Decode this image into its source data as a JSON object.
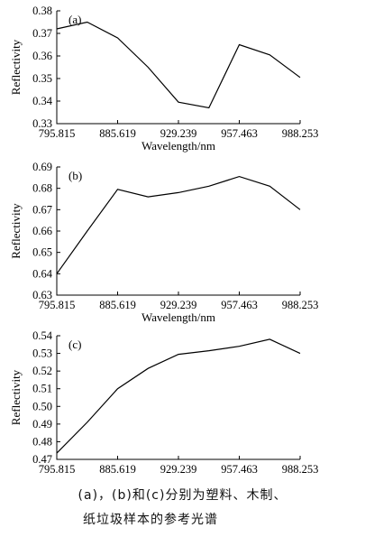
{
  "chart_data": [
    {
      "type": "line",
      "panel_label": "(a)",
      "xlabel": "Wavelength/nm",
      "ylabel": "Reflectivity",
      "categories": [
        "795.815",
        "885.619",
        "929.239",
        "957.463",
        "988.253"
      ],
      "x": [
        0,
        0.5,
        1,
        1.5,
        2,
        2.5,
        3,
        3.5,
        4
      ],
      "series": [
        {
          "values": [
            0.372,
            0.375,
            0.368,
            0.355,
            0.3395,
            0.337,
            0.365,
            0.3605,
            0.3505
          ]
        }
      ],
      "ylim": [
        0.33,
        0.38
      ],
      "yticks": [
        "0.33",
        "0.34",
        "0.35",
        "0.36",
        "0.37",
        "0.38"
      ],
      "grid": false
    },
    {
      "type": "line",
      "panel_label": "(b)",
      "xlabel": "Wavelength/nm",
      "ylabel": "Reflectivity",
      "categories": [
        "795.815",
        "885.619",
        "929.239",
        "957.463",
        "988.253"
      ],
      "x": [
        0,
        0.5,
        1,
        1.5,
        2,
        2.5,
        3,
        3.5,
        4
      ],
      "series": [
        {
          "values": [
            0.64,
            0.66,
            0.6795,
            0.676,
            0.678,
            0.681,
            0.6855,
            0.681,
            0.67
          ]
        }
      ],
      "ylim": [
        0.63,
        0.69
      ],
      "yticks": [
        "0.63",
        "0.64",
        "0.65",
        "0.66",
        "0.67",
        "0.68",
        "0.69"
      ],
      "grid": false
    },
    {
      "type": "line",
      "panel_label": "(c)",
      "xlabel": "",
      "ylabel": "Reflectivity",
      "categories": [
        "795.815",
        "885.619",
        "929.239",
        "957.463",
        "988.253"
      ],
      "x": [
        0,
        0.5,
        1,
        1.5,
        2,
        2.5,
        3,
        3.5,
        4
      ],
      "series": [
        {
          "values": [
            0.4735,
            0.491,
            0.51,
            0.5215,
            0.5295,
            0.5315,
            0.534,
            0.538,
            0.53
          ]
        }
      ],
      "ylim": [
        0.47,
        0.54
      ],
      "yticks": [
        "0.47",
        "0.48",
        "0.49",
        "0.50",
        "0.51",
        "0.52",
        "0.53",
        "0.54"
      ],
      "grid": false
    }
  ],
  "caption": {
    "line1": "(a)，(b)和(c)分别为塑料、木制、",
    "line2": "纸垃圾样本的参考光谱"
  }
}
